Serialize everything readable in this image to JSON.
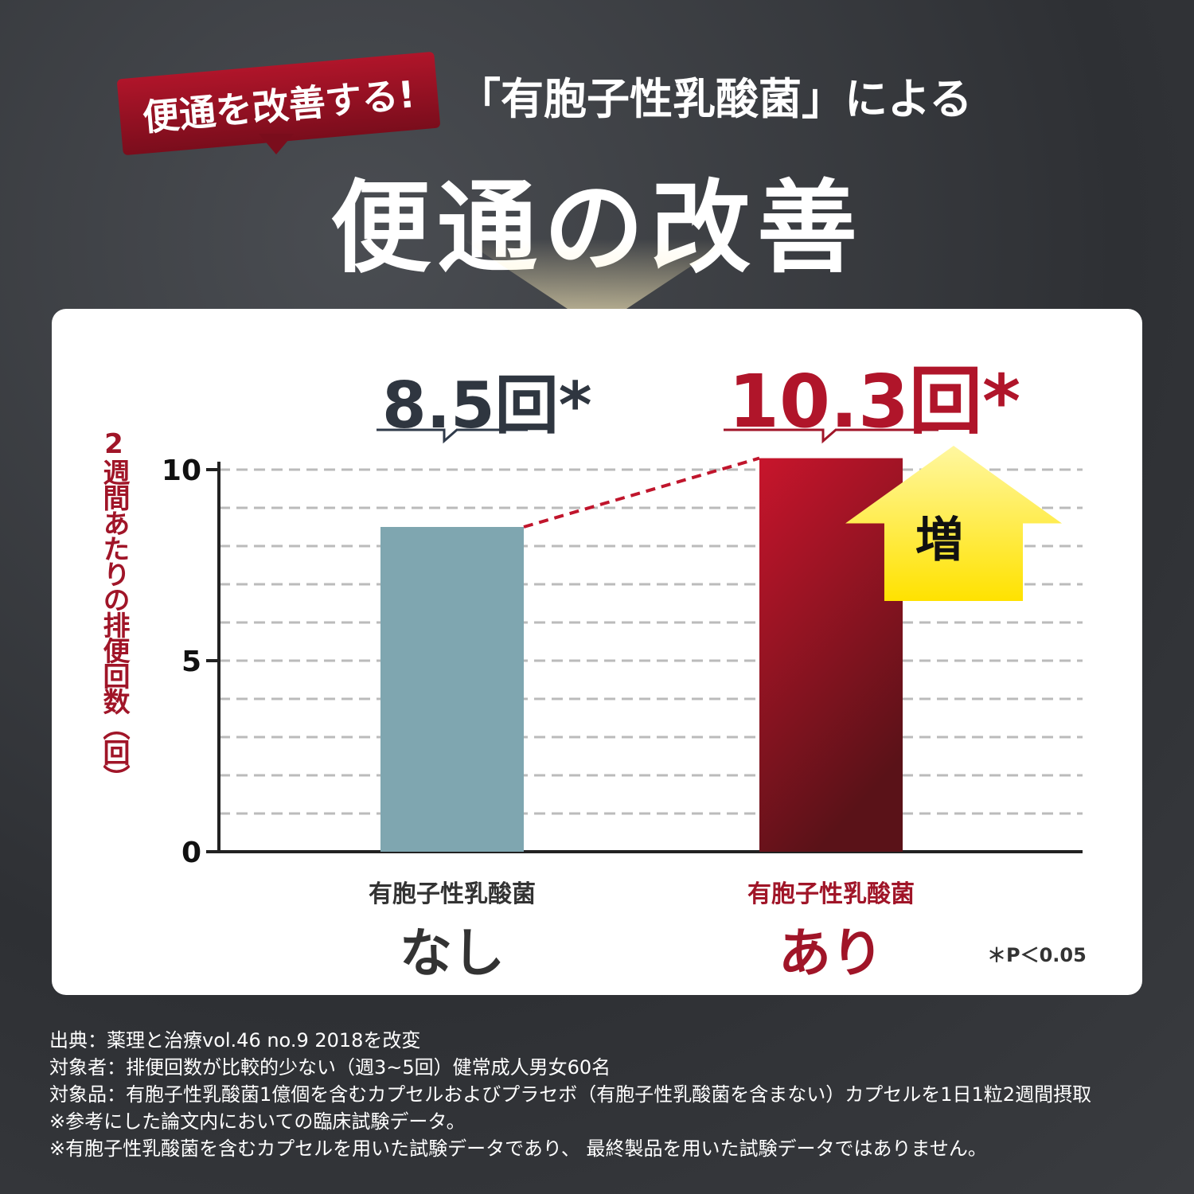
{
  "header": {
    "badge": "便通を改善する!",
    "subtitle": "「有胞子性乳酸菌」による",
    "title": "便通の改善"
  },
  "chart_data": {
    "type": "bar",
    "title": "便通の改善",
    "ylabel": "2週間あたりの排便回数（回）",
    "ylim": [
      0,
      10
    ],
    "yticks": [
      "0",
      "5",
      "10"
    ],
    "categories": [
      {
        "line1": "有胞子性乳酸菌",
        "line2": "なし"
      },
      {
        "line1": "有胞子性乳酸菌",
        "line2": "あり"
      }
    ],
    "values": [
      8.5,
      10.3
    ],
    "value_labels": [
      "8.5回*",
      "10.3回*"
    ],
    "colors": [
      "#7fa6b0",
      "#c0152c"
    ],
    "grid": true,
    "annotation": "増",
    "note": "＊P＜0.05"
  },
  "notes": [
    "出典：薬理と治療vol.46 no.9 2018を改変",
    "対象者：排便回数が比較的少ない（週3~5回）健常成人男女60名",
    "対象品：有胞子性乳酸菌1億個を含むカプセルおよびプラセボ（有胞子性乳酸菌を含まない）カプセルを1日1粒2週間摂取",
    "※参考にした論文内においての臨床試験データ。",
    "※有胞子性乳酸菌を含むカプセルを用いた試験データであり、 最終製品を用いた試験データではありません。"
  ]
}
